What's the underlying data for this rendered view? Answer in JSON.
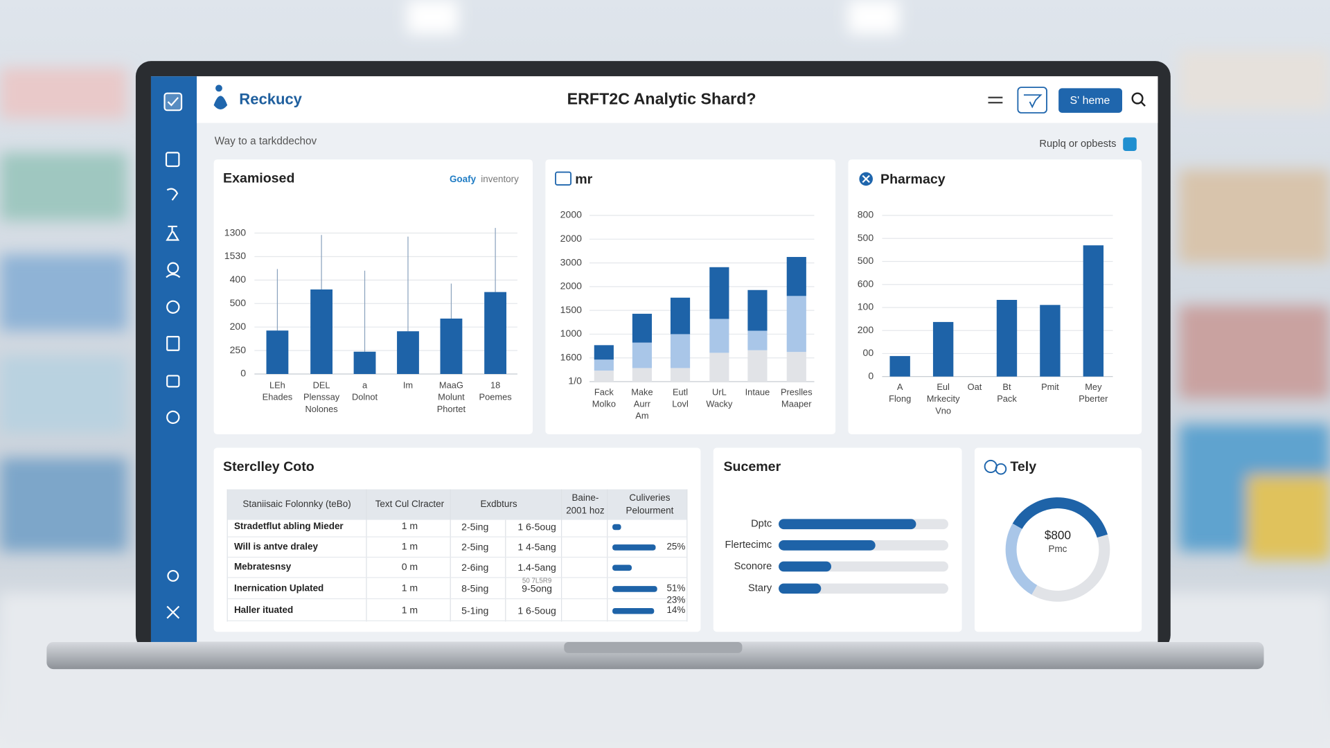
{
  "header": {
    "brand": "Reckucy",
    "title": "ERFT2C Analytic Shard?",
    "button": "S' heme"
  },
  "breadcrumb": "Way to a tarkddechov",
  "toolbar_link": "Ruplq or opbests",
  "chart_data": [
    {
      "type": "bar",
      "title": "Examiosed",
      "legend": [
        "Goafy",
        "inventory"
      ],
      "color": "#1e63a8",
      "categories": [
        [
          "LEh",
          "Ehades"
        ],
        [
          "DEL",
          "Plenssay",
          "Nolones"
        ],
        [
          "a",
          "Dolnot"
        ],
        [
          "Im"
        ],
        [
          "MaaG",
          "Molunt",
          "Phortet"
        ],
        [
          "18",
          "Poemes"
        ]
      ],
      "values": [
        185,
        360,
        95,
        182,
        236,
        349
      ],
      "errors": [
        262,
        232,
        345,
        403,
        149,
        273
      ],
      "ylim": [
        0,
        650
      ],
      "yticks": [
        0,
        {
          "value": 100,
          "label": "250"
        },
        200,
        {
          "value": 300,
          "label": "500"
        },
        {
          "value": 400,
          "label": "400"
        },
        {
          "value": 500,
          "label": "1530"
        },
        {
          "value": 600,
          "label": "1300"
        }
      ],
      "grid": true
    },
    {
      "type": "stacked_bar",
      "title": "mr",
      "categories": [
        [
          "Fack",
          "Molko"
        ],
        [
          "Make",
          "Aurr",
          "Am"
        ],
        [
          "Eutl",
          "Lovl"
        ],
        [
          "UrL",
          "Wacky"
        ],
        [
          "Intaue"
        ],
        [
          "Preslles",
          "Maaper"
        ]
      ],
      "series": [
        {
          "color": "#e1e3e7",
          "values": [
            232,
            286,
            286,
            607,
            661,
            625
          ]
        },
        {
          "color": "#a9c6e8",
          "values": [
            232,
            536,
            714,
            714,
            411,
            1179
          ]
        },
        {
          "color": "#1e63a8",
          "values": [
            304,
            607,
            768,
            1089,
            857,
            821
          ]
        }
      ],
      "ylim": [
        0,
        3500
      ],
      "yticks": [
        {
          "value": 0,
          "label": "1/0"
        },
        {
          "value": 500,
          "label": "1600"
        },
        1000,
        1500,
        2000,
        {
          "value": 2500,
          "label": "3000"
        },
        {
          "value": 3000,
          "label": "2000"
        },
        {
          "value": 3500,
          "label": "2000"
        }
      ],
      "grid": true
    },
    {
      "type": "bar",
      "title": "Pharmacy",
      "color": "#1e63a8",
      "categories": [
        [
          "A",
          "Flong"
        ],
        [
          "Eul",
          "Mrkecity",
          "Vno"
        ],
        [
          "Oat"
        ],
        [
          "Bt",
          "Pack"
        ],
        [
          "Pmit"
        ],
        [
          "Mey",
          "Pberter"
        ]
      ],
      "values": [
        89,
        237,
        null,
        333,
        311,
        570
      ],
      "ylim": [
        0,
        700
      ],
      "yticks": [
        0,
        {
          "value": 100,
          "label": "00"
        },
        200,
        {
          "value": 300,
          "label": "100"
        },
        {
          "value": 400,
          "label": "600"
        },
        500,
        {
          "value": 600,
          "label": "500"
        },
        {
          "value": 700,
          "label": "800"
        }
      ],
      "grid": true
    },
    {
      "type": "hbar",
      "title": "Sucemer",
      "color": "#1e63a8",
      "track_color": "#e3e5e9",
      "categories": [
        "Dptc",
        "Flertecimc",
        "Sconore",
        "Stary"
      ],
      "values": [
        81,
        57,
        31,
        25
      ],
      "xlim": [
        0,
        100
      ]
    },
    {
      "type": "donut",
      "title": "Tely",
      "center_value": "$800",
      "center_label": "Pmc",
      "values": [
        37,
        38,
        25
      ],
      "colors": [
        "#1e63a8",
        "#e1e3e7",
        "#a9c6e8"
      ]
    }
  ],
  "table": {
    "title": "Sterclley Coto",
    "headers": [
      "Staniisaic Folonnky (teBo)",
      "Text Cul Clracter",
      "Exdbturs",
      [
        "Baine-",
        "2001 hoz"
      ],
      [
        "Culiveries",
        "Pelourment"
      ]
    ],
    "rows": [
      {
        "name": "Stradetflut abling Mieder",
        "text": "1 m",
        "ex1": "2-5ing",
        "ex2": "1 6-5oug",
        "progress": 17
      },
      {
        "name": "Will is antve draley",
        "text": "1 m",
        "ex1": "2-5ing",
        "ex2": "1 4-5ang",
        "progress": 85,
        "pct": "25%"
      },
      {
        "name": "Mebratesnsy",
        "text": "0 m",
        "ex1": "2-6ing",
        "ex2": "1.4-5ang",
        "progress": 38
      },
      {
        "name": "Inernication Uplated",
        "text": "1 m",
        "ex1": "8-5ing",
        "note": "50 7L5R9",
        "ex2": "9-5ong",
        "progress": 88,
        "pct": "51%",
        "pct2": "23%"
      },
      {
        "name": "Haller ituated",
        "text": "1 m",
        "ex1": "5-1ing",
        "ex2": "1 6-5oug",
        "progress": 82,
        "pct": "14%"
      }
    ]
  }
}
